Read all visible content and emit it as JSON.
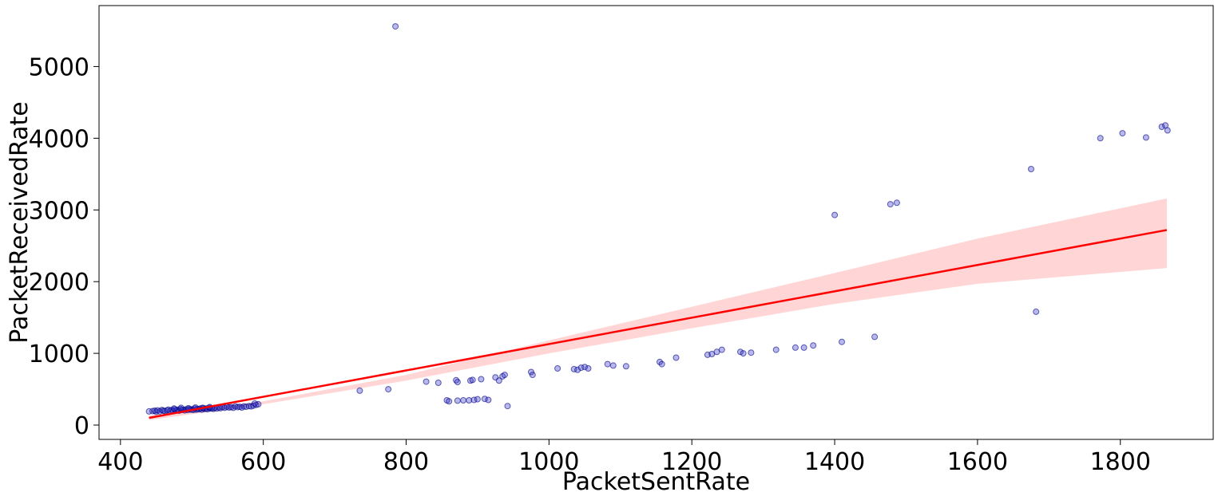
{
  "chart_data": {
    "type": "scatter",
    "title": "",
    "xlabel": "PacketSentRate",
    "ylabel": "PacketReceivedRate",
    "xlim": [
      370,
      1930
    ],
    "ylim": [
      -200,
      5850
    ],
    "xticks": [
      400,
      600,
      800,
      1000,
      1200,
      1400,
      1600,
      1800
    ],
    "yticks": [
      0,
      1000,
      2000,
      3000,
      4000,
      5000
    ],
    "grid": false,
    "legend": "none",
    "colors": {
      "points_fill": "#3333cc",
      "points_alpha": 0.35,
      "points_edge": "#000080",
      "fit_line": "#ff0000",
      "ci_band": "#ffb3b3"
    },
    "regression": {
      "x": [
        440,
        1865
      ],
      "y": [
        100,
        2720
      ],
      "ci_upper": [
        [
          440,
          130
        ],
        [
          600,
          330
        ],
        [
          800,
          700
        ],
        [
          1000,
          1180
        ],
        [
          1200,
          1650
        ],
        [
          1400,
          2120
        ],
        [
          1600,
          2600
        ],
        [
          1865,
          3160
        ]
      ],
      "ci_lower": [
        [
          440,
          70
        ],
        [
          600,
          290
        ],
        [
          800,
          620
        ],
        [
          1000,
          1000
        ],
        [
          1200,
          1350
        ],
        [
          1400,
          1690
        ],
        [
          1600,
          1970
        ],
        [
          1865,
          2190
        ]
      ]
    },
    "points": [
      [
        440,
        190
      ],
      [
        445,
        195
      ],
      [
        448,
        200
      ],
      [
        450,
        185
      ],
      [
        452,
        205
      ],
      [
        455,
        190
      ],
      [
        458,
        210
      ],
      [
        460,
        200
      ],
      [
        462,
        195
      ],
      [
        465,
        205
      ],
      [
        467,
        215
      ],
      [
        470,
        200
      ],
      [
        472,
        210
      ],
      [
        474,
        195
      ],
      [
        476,
        220
      ],
      [
        478,
        205
      ],
      [
        480,
        215
      ],
      [
        482,
        200
      ],
      [
        484,
        225
      ],
      [
        486,
        210
      ],
      [
        488,
        215
      ],
      [
        490,
        205
      ],
      [
        492,
        220
      ],
      [
        494,
        210
      ],
      [
        496,
        225
      ],
      [
        498,
        215
      ],
      [
        500,
        220
      ],
      [
        502,
        210
      ],
      [
        504,
        230
      ],
      [
        506,
        215
      ],
      [
        508,
        225
      ],
      [
        510,
        220
      ],
      [
        512,
        230
      ],
      [
        514,
        215
      ],
      [
        516,
        235
      ],
      [
        518,
        225
      ],
      [
        520,
        230
      ],
      [
        522,
        220
      ],
      [
        524,
        240
      ],
      [
        526,
        230
      ],
      [
        528,
        235
      ],
      [
        530,
        225
      ],
      [
        532,
        240
      ],
      [
        535,
        230
      ],
      [
        538,
        245
      ],
      [
        540,
        235
      ],
      [
        543,
        250
      ],
      [
        546,
        240
      ],
      [
        549,
        255
      ],
      [
        552,
        245
      ],
      [
        555,
        250
      ],
      [
        558,
        240
      ],
      [
        561,
        260
      ],
      [
        564,
        250
      ],
      [
        567,
        255
      ],
      [
        570,
        245
      ],
      [
        573,
        260
      ],
      [
        576,
        255
      ],
      [
        580,
        265
      ],
      [
        583,
        260
      ],
      [
        586,
        270
      ],
      [
        590,
        280
      ],
      [
        593,
        290
      ],
      [
        588,
        300
      ],
      [
        475,
        230
      ],
      [
        485,
        240
      ],
      [
        495,
        235
      ],
      [
        505,
        245
      ],
      [
        515,
        240
      ],
      [
        525,
        250
      ],
      [
        735,
        480
      ],
      [
        775,
        500
      ],
      [
        785,
        5560
      ],
      [
        828,
        605
      ],
      [
        845,
        590
      ],
      [
        857,
        345
      ],
      [
        860,
        330
      ],
      [
        870,
        625
      ],
      [
        872,
        600
      ],
      [
        872,
        340
      ],
      [
        880,
        345
      ],
      [
        888,
        345
      ],
      [
        890,
        620
      ],
      [
        893,
        630
      ],
      [
        895,
        350
      ],
      [
        900,
        360
      ],
      [
        905,
        640
      ],
      [
        910,
        365
      ],
      [
        915,
        350
      ],
      [
        925,
        665
      ],
      [
        930,
        620
      ],
      [
        935,
        680
      ],
      [
        938,
        700
      ],
      [
        942,
        265
      ],
      [
        975,
        740
      ],
      [
        977,
        700
      ],
      [
        1012,
        790
      ],
      [
        1035,
        780
      ],
      [
        1040,
        770
      ],
      [
        1045,
        800
      ],
      [
        1050,
        810
      ],
      [
        1055,
        790
      ],
      [
        1082,
        850
      ],
      [
        1090,
        830
      ],
      [
        1108,
        820
      ],
      [
        1155,
        880
      ],
      [
        1158,
        850
      ],
      [
        1178,
        940
      ],
      [
        1222,
        980
      ],
      [
        1228,
        990
      ],
      [
        1235,
        1020
      ],
      [
        1242,
        1050
      ],
      [
        1268,
        1020
      ],
      [
        1272,
        1000
      ],
      [
        1283,
        1010
      ],
      [
        1318,
        1050
      ],
      [
        1345,
        1080
      ],
      [
        1357,
        1080
      ],
      [
        1370,
        1110
      ],
      [
        1400,
        2930
      ],
      [
        1410,
        1160
      ],
      [
        1456,
        1230
      ],
      [
        1478,
        3080
      ],
      [
        1487,
        3100
      ],
      [
        1675,
        3570
      ],
      [
        1682,
        1580
      ],
      [
        1772,
        4000
      ],
      [
        1803,
        4070
      ],
      [
        1836,
        4010
      ],
      [
        1858,
        4160
      ],
      [
        1863,
        4180
      ],
      [
        1866,
        4110
      ]
    ]
  }
}
